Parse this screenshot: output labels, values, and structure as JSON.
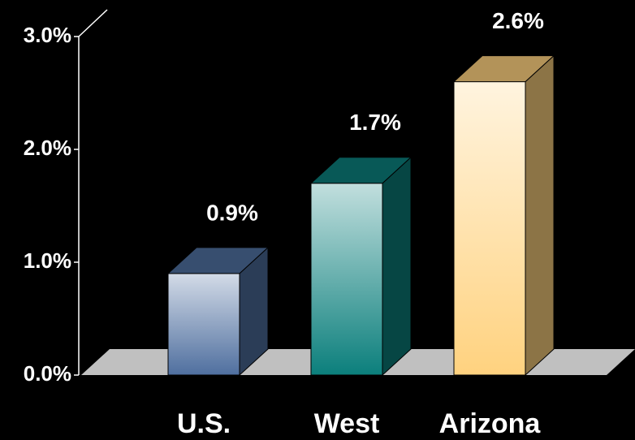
{
  "chart_data": {
    "type": "bar3d",
    "categories": [
      "U.S.",
      "West",
      "Arizona"
    ],
    "values": [
      0.9,
      1.7,
      2.6
    ],
    "value_labels": [
      "0.9%",
      "1.7%",
      "2.6%"
    ],
    "colors": [
      "#4f6f9f",
      "#0b7f7c",
      "#ffd27f"
    ],
    "ylim": [
      0,
      3
    ],
    "yticks": [
      {
        "value": 0,
        "label": "0.0%"
      },
      {
        "value": 1,
        "label": "1.0%"
      },
      {
        "value": 2,
        "label": "2.0%"
      },
      {
        "value": 3,
        "label": "3.0%"
      }
    ]
  }
}
